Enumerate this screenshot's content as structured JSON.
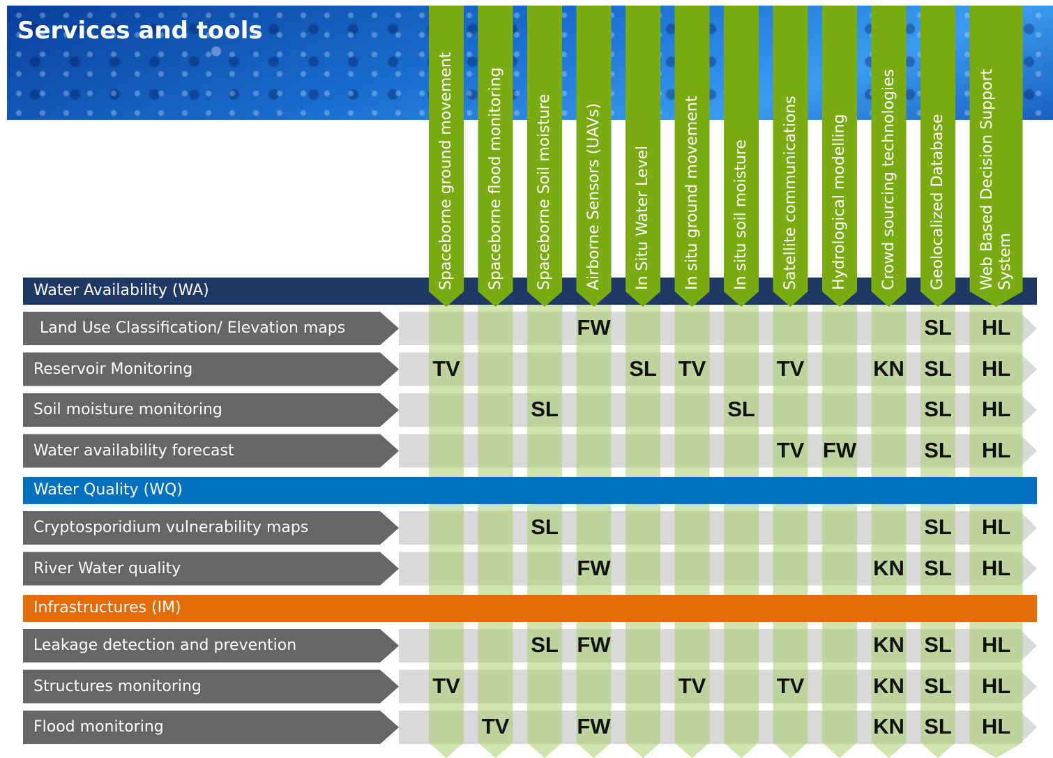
{
  "header": {
    "title": "Services and tools"
  },
  "columns": [
    "Spaceborne ground movement",
    "Spaceborne flood monitoring",
    "Spaceborne Soil moisture",
    "Airborne Sensors (UAVs)",
    "In Situ Water Level",
    "In situ ground movement",
    "In situ soil moisture",
    "Satellite communications",
    "Hydrological modelling",
    "Crowd sourcing technologies",
    "Geolocalized Database",
    "Web Based Decision Support System"
  ],
  "sections": [
    {
      "title": "Water Availability (WA)",
      "color": "#1f3864",
      "rows": [
        {
          "label": "Land Use Classification/ Elevation maps",
          "cells": [
            null,
            null,
            null,
            "FW",
            null,
            null,
            null,
            null,
            null,
            null,
            "SL",
            "HL"
          ]
        },
        {
          "label": "Reservoir Monitoring",
          "cells": [
            "TV",
            null,
            null,
            null,
            "SL",
            "TV",
            null,
            "TV",
            null,
            "KN",
            "SL",
            "HL"
          ]
        },
        {
          "label": "Soil moisture monitoring",
          "cells": [
            null,
            null,
            "SL",
            null,
            null,
            null,
            "SL",
            null,
            null,
            null,
            "SL",
            "HL"
          ]
        },
        {
          "label": "Water availability forecast",
          "cells": [
            null,
            null,
            null,
            null,
            null,
            null,
            null,
            "TV",
            "FW",
            null,
            "SL",
            "HL"
          ]
        }
      ]
    },
    {
      "title": "Water Quality (WQ)",
      "color": "#0070c0",
      "rows": [
        {
          "label": "Cryptosporidium vulnerability maps",
          "cells": [
            null,
            null,
            "SL",
            null,
            null,
            null,
            null,
            null,
            null,
            null,
            "SL",
            "HL"
          ]
        },
        {
          "label": "River Water quality",
          "cells": [
            null,
            null,
            null,
            "FW",
            null,
            null,
            null,
            null,
            null,
            "KN",
            "SL",
            "HL"
          ]
        }
      ]
    },
    {
      "title": "Infrastructures (IM)",
      "color": "#e36c09",
      "rows": [
        {
          "label": "Leakage detection and prevention",
          "cells": [
            null,
            null,
            "SL",
            "FW",
            null,
            null,
            null,
            null,
            null,
            "KN",
            "SL",
            "HL"
          ]
        },
        {
          "label": "Structures monitoring",
          "cells": [
            "TV",
            null,
            null,
            null,
            null,
            "TV",
            null,
            "TV",
            null,
            "KN",
            "SL",
            "HL"
          ]
        },
        {
          "label": "Flood monitoring",
          "cells": [
            null,
            "TV",
            null,
            "FW",
            null,
            null,
            null,
            null,
            null,
            "KN",
            "SL",
            "HL"
          ]
        }
      ]
    }
  ]
}
